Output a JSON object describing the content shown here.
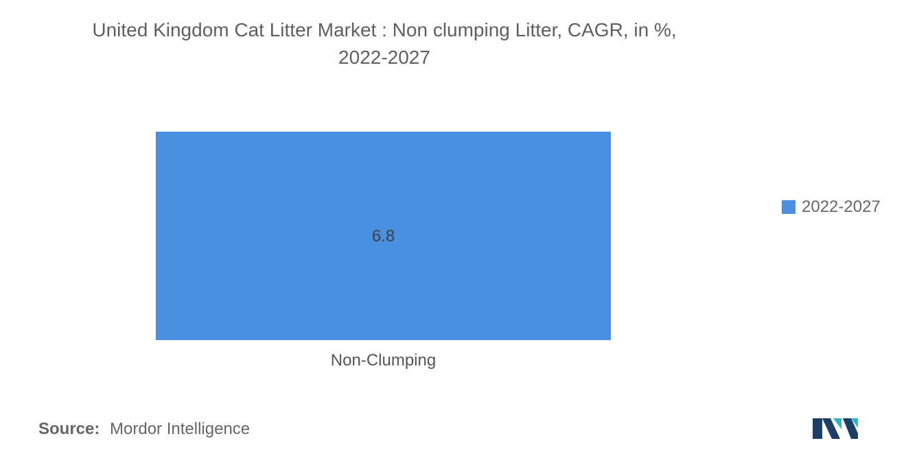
{
  "title_lines": [
    "United Kingdom Cat Litter Market : Non clumping Litter, CAGR, in %,",
    "2022-2027"
  ],
  "source": {
    "label": "Source:",
    "value": "Mordor Intelligence"
  },
  "colors": {
    "bar": "#4a90e2",
    "logo_dark": "#1d3f66",
    "logo_teal": "#2bb6c7"
  },
  "logo_icon": "mordor-intelligence-logo-icon",
  "chart_data": {
    "type": "bar",
    "title": "United Kingdom Cat Litter Market : Non clumping Litter, CAGR, in %, 2022-2027",
    "categories": [
      "Non-Clumping"
    ],
    "series": [
      {
        "name": "2022-2027",
        "values": [
          6.8
        ]
      }
    ],
    "data_labels": [
      "6.8"
    ],
    "ylim": [
      0,
      6.8
    ],
    "grid": false,
    "legend": "right"
  }
}
